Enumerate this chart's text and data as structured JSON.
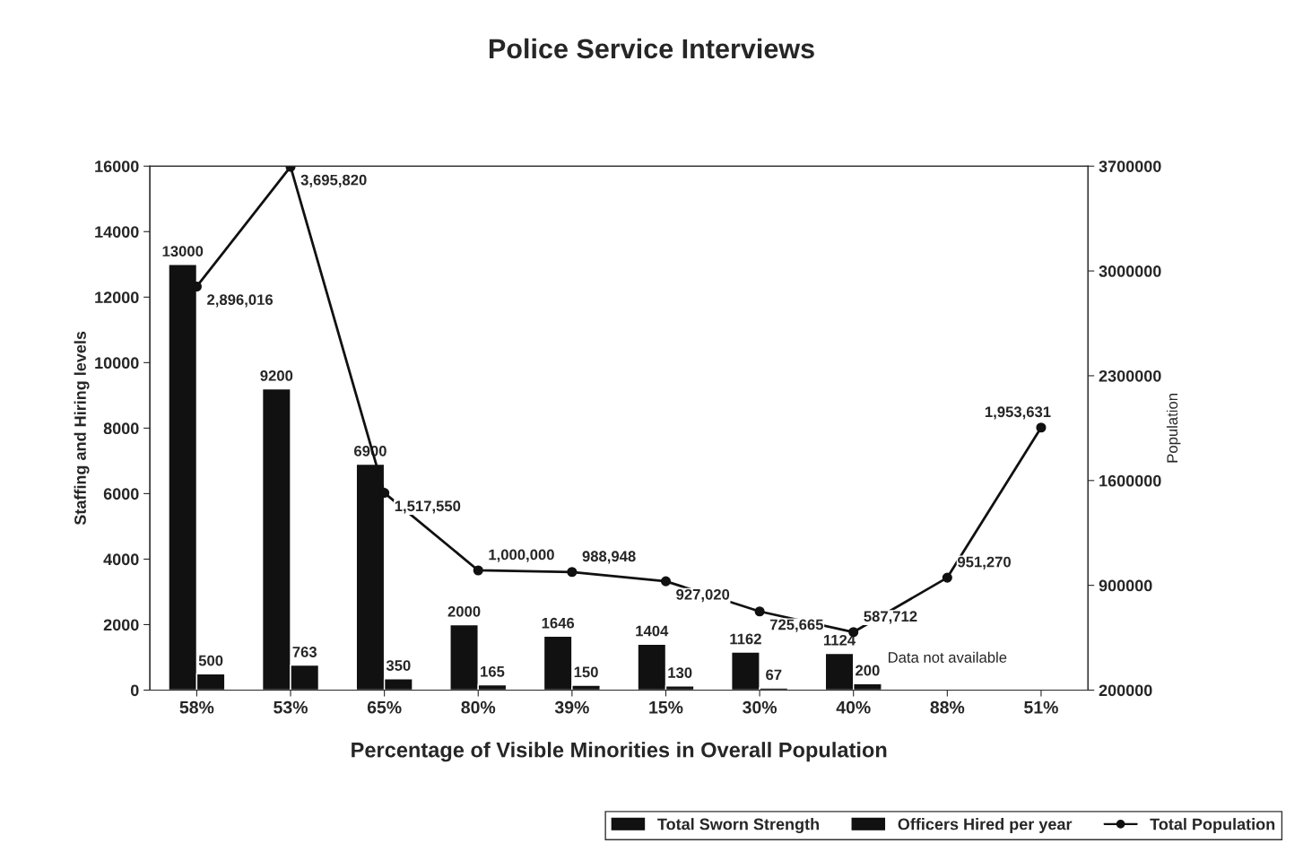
{
  "chart_data": {
    "type": "bar",
    "title": "Police Service Interviews",
    "xlabel": "Percentage of Visible Minorities in Overall Population",
    "ylabel": "Staffing and Hiring levels",
    "y2label": "Population",
    "categories": [
      "58%",
      "53%",
      "65%",
      "80%",
      "39%",
      "15%",
      "30%",
      "40%",
      "88%",
      "51%"
    ],
    "series": [
      {
        "name": "Total Sworn Strength",
        "color": "#111111",
        "values": [
          13000,
          9200,
          6900,
          2000,
          1646,
          1404,
          1162,
          1124,
          null,
          null
        ],
        "data_labels": true
      },
      {
        "name": "Officers Hired per year",
        "color": "#111111",
        "values": [
          500,
          763,
          350,
          165,
          150,
          130,
          67,
          200,
          null,
          null
        ],
        "data_labels": true
      },
      {
        "name": "Total Population",
        "type": "line",
        "axis": "y2",
        "color": "#111111",
        "marker": "circle",
        "line_style": "solid",
        "values": [
          2896016,
          3695820,
          1517550,
          1000000,
          988948,
          927020,
          725665,
          587712,
          951270,
          1953631
        ],
        "value_labels": [
          "2,896,016",
          "3,695,820",
          "1,517,550",
          "1,000,000",
          "988,948",
          "927,020",
          "725,665",
          "587,712",
          "951,270",
          "1,953,631"
        ]
      }
    ],
    "ylim": [
      0,
      16000
    ],
    "yticks": [
      0,
      2000,
      4000,
      6000,
      8000,
      10000,
      12000,
      14000,
      16000
    ],
    "y2lim": [
      200000,
      3700000
    ],
    "y2ticks": [
      200000,
      900000,
      1600000,
      2300000,
      3000000,
      3700000
    ],
    "annotations": [
      "Data not available"
    ],
    "legend": "bottom right",
    "grid": false
  }
}
